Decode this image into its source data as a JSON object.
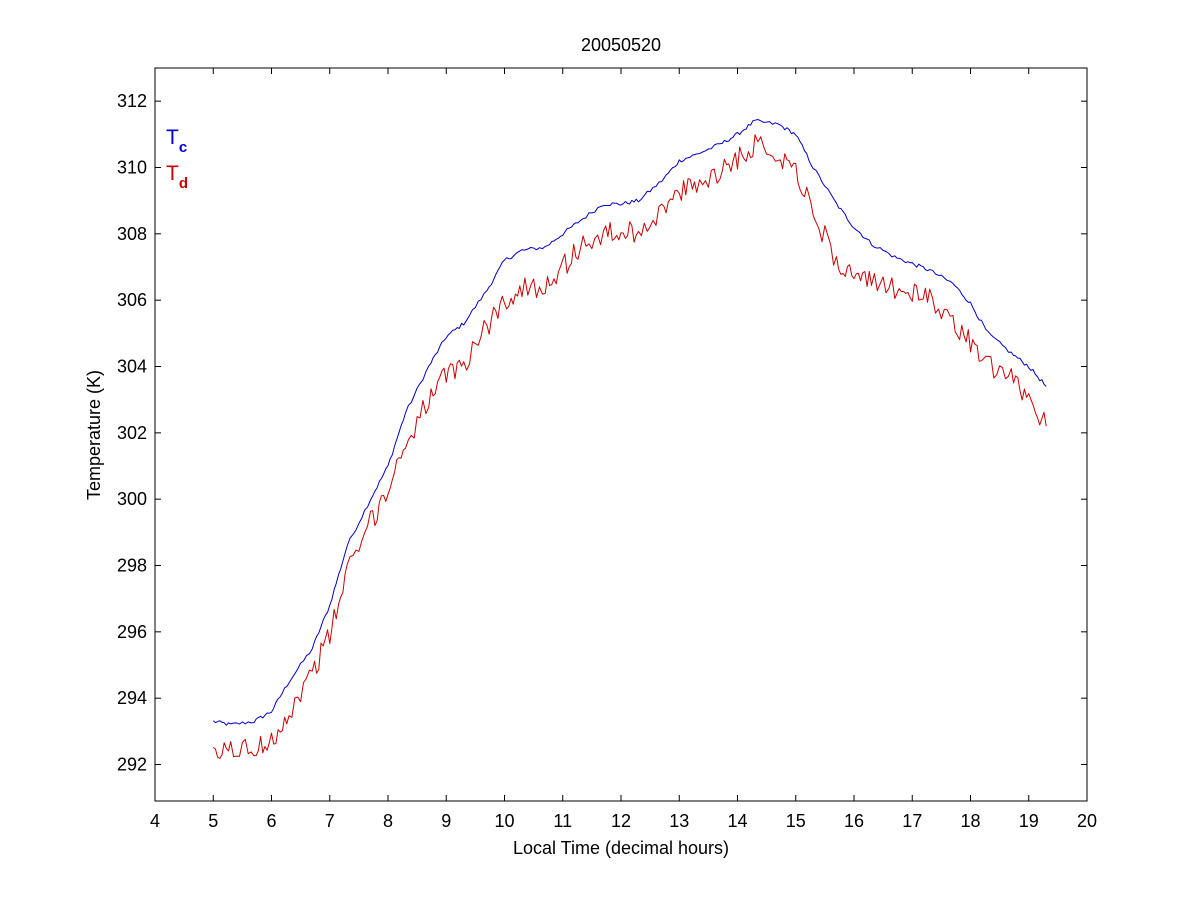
{
  "chart_data": {
    "type": "line",
    "title": "20050520",
    "xlabel": "Local Time (decimal hours)",
    "ylabel": "Temperature (K)",
    "xlim": [
      4,
      20
    ],
    "ylim": [
      290.9,
      313
    ],
    "xticks": [
      4,
      5,
      6,
      7,
      8,
      9,
      10,
      11,
      12,
      13,
      14,
      15,
      16,
      17,
      18,
      19,
      20
    ],
    "yticks": [
      292,
      294,
      296,
      298,
      300,
      302,
      304,
      306,
      308,
      310,
      312
    ],
    "grid": false,
    "legend_position": "top-left",
    "series": [
      {
        "name": "Tc",
        "label_main": "T",
        "label_sub": "c",
        "color": "#0000cc",
        "noise": 0.06,
        "x": [
          5.0,
          5.3,
          5.7,
          6.0,
          6.3,
          6.7,
          7.0,
          7.3,
          7.7,
          8.0,
          8.3,
          8.7,
          9.0,
          9.3,
          9.7,
          10.0,
          10.3,
          10.7,
          11.0,
          11.3,
          11.7,
          12.0,
          12.3,
          12.7,
          13.0,
          13.3,
          13.7,
          14.0,
          14.3,
          14.7,
          15.0,
          15.3,
          15.7,
          16.0,
          16.3,
          16.7,
          17.0,
          17.3,
          17.7,
          18.0,
          18.3,
          18.7,
          19.0,
          19.3
        ],
        "y": [
          293.3,
          293.2,
          293.3,
          293.6,
          294.5,
          295.5,
          296.8,
          298.6,
          300.0,
          301.0,
          302.6,
          304.0,
          304.9,
          305.3,
          306.3,
          307.2,
          307.5,
          307.6,
          308.0,
          308.4,
          308.9,
          308.9,
          309.0,
          309.6,
          310.2,
          310.4,
          310.7,
          311.0,
          311.4,
          311.3,
          311.0,
          310.0,
          308.9,
          308.2,
          307.7,
          307.3,
          307.1,
          306.9,
          306.5,
          305.9,
          305.0,
          304.4,
          304.0,
          303.4
        ]
      },
      {
        "name": "Td",
        "label_main": "T",
        "label_sub": "d",
        "color": "#cc0000",
        "noise": 0.35,
        "x": [
          5.0,
          5.3,
          5.7,
          6.0,
          6.3,
          6.7,
          7.0,
          7.3,
          7.7,
          8.0,
          8.3,
          8.7,
          9.0,
          9.3,
          9.7,
          10.0,
          10.3,
          10.7,
          11.0,
          11.3,
          11.7,
          12.0,
          12.3,
          12.7,
          13.0,
          13.3,
          13.7,
          14.0,
          14.3,
          14.7,
          15.0,
          15.3,
          15.7,
          16.0,
          16.3,
          16.7,
          17.0,
          17.3,
          17.7,
          18.0,
          18.3,
          18.7,
          19.0,
          19.3
        ],
        "y": [
          292.2,
          292.5,
          292.4,
          292.8,
          293.5,
          294.8,
          295.9,
          297.8,
          299.3,
          300.3,
          301.7,
          303.0,
          303.7,
          304.1,
          305.2,
          306.0,
          306.3,
          306.5,
          307.0,
          307.6,
          308.0,
          308.0,
          308.1,
          308.7,
          309.2,
          309.5,
          309.9,
          310.3,
          310.7,
          310.4,
          310.0,
          308.6,
          307.2,
          306.7,
          306.5,
          306.4,
          306.2,
          306.0,
          305.4,
          304.7,
          304.0,
          303.6,
          303.1,
          302.2
        ]
      }
    ]
  }
}
